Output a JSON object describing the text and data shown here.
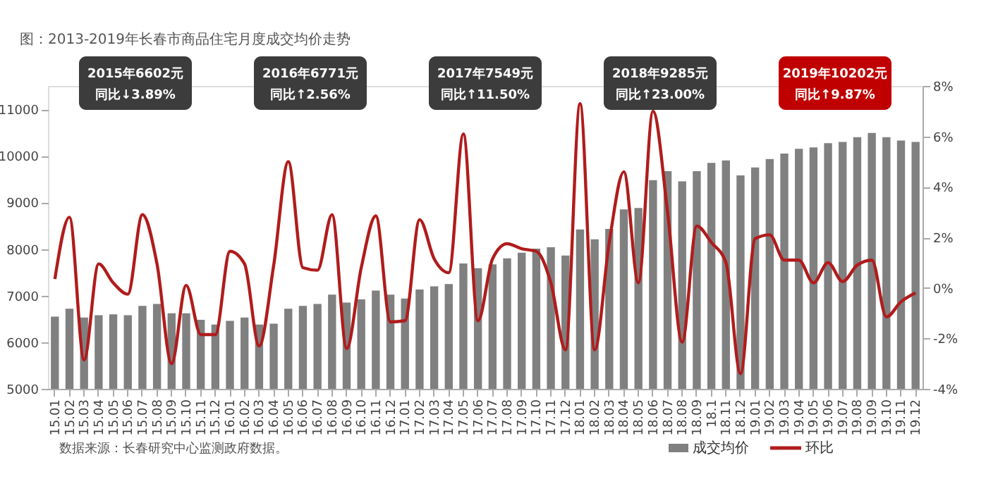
{
  "chart_data": {
    "type": "bar",
    "title": "图：2013-2019年长春市商品住宅月度成交均价走势",
    "categories": [
      "15.01",
      "15.02",
      "15.03",
      "15.04",
      "15.05",
      "15.06",
      "15.07",
      "15.08",
      "15.09",
      "15.10",
      "15.11",
      "15.12",
      "16.01",
      "16.02",
      "16.03",
      "16.04",
      "16.05",
      "16.06",
      "16.07",
      "16.08",
      "16.09",
      "16.10",
      "16.11",
      "16.12",
      "17.01",
      "17.02",
      "17.03",
      "17.04",
      "17.05",
      "17.06",
      "17.07",
      "17.08",
      "17.09",
      "17.10",
      "17.11",
      "17.12",
      "18.01",
      "18.02",
      "18.03",
      "18.04",
      "18.05",
      "18.06",
      "18.07",
      "18.08",
      "18.09",
      "18.1",
      "18.11",
      "18.12",
      "19.01",
      "19.02",
      "19.03",
      "19.04",
      "19.05",
      "19.06",
      "19.07",
      "19.08",
      "19.09",
      "19.10",
      "19.11",
      "19.12"
    ],
    "series": [
      {
        "name": "成交均价",
        "color": "#808080",
        "values": [
          6550,
          6720,
          6530,
          6580,
          6600,
          6580,
          6780,
          6820,
          6620,
          6620,
          6480,
          6380,
          6460,
          6530,
          6380,
          6400,
          6720,
          6780,
          6820,
          7020,
          6850,
          6920,
          7110,
          7020,
          6940,
          7130,
          7200,
          7250,
          7690,
          7590,
          7670,
          7800,
          7920,
          8010,
          8040,
          7860,
          8420,
          8210,
          8430,
          8850,
          8880,
          9480,
          9670,
          9450,
          9670,
          9850,
          9900,
          9580,
          9750,
          9930,
          10050,
          10150,
          10180,
          10270,
          10300,
          10400,
          10490,
          10400,
          10330,
          10300
        ]
      },
      {
        "name": "环比",
        "type": "line",
        "axis": "y2",
        "color": "#b01c1c",
        "values": [
          0.35,
          2.8,
          -2.85,
          0.95,
          0.2,
          -0.25,
          2.9,
          0.95,
          -3.0,
          0.1,
          -1.85,
          -1.85,
          1.45,
          0.95,
          -2.3,
          0.9,
          5.0,
          0.8,
          0.7,
          2.9,
          -2.4,
          0.8,
          2.85,
          -1.35,
          -1.3,
          2.7,
          1.15,
          0.6,
          6.1,
          -1.3,
          1.15,
          1.75,
          1.55,
          1.45,
          0.2,
          -2.45,
          7.3,
          -2.45,
          1.8,
          4.6,
          0.2,
          7.0,
          3.0,
          -2.15,
          2.45,
          1.8,
          1.0,
          -3.4,
          1.95,
          2.1,
          1.1,
          1.1,
          0.2,
          1.0,
          0.25,
          0.9,
          1.1,
          -1.15,
          -0.55,
          -0.2
        ]
      }
    ],
    "ylim": [
      5000,
      11500
    ],
    "yticks": [
      5000,
      6000,
      7000,
      8000,
      9000,
      10000,
      11000
    ],
    "y2lim": [
      -4,
      8
    ],
    "y2ticks": [
      {
        "value": -4,
        "label": "-4%"
      },
      {
        "value": -2,
        "label": "-2%"
      },
      {
        "value": 0,
        "label": "0%"
      },
      {
        "value": 2,
        "label": "2%"
      },
      {
        "value": 4,
        "label": "4%"
      },
      {
        "value": 6,
        "label": "6%"
      },
      {
        "value": 8,
        "label": "8%"
      }
    ],
    "grid": false,
    "legend": "bottom",
    "annotations": [
      "2015年6602元",
      "同比↓3.89%",
      "2016年6771元",
      "同比↑2.56%",
      "2017年7549元",
      "同比↑11.50%",
      "2018年9285元",
      "同比↑23.00%",
      "2019年10202元",
      "同比↑9.87%",
      "数据来源：长春研究中心监测政府数据。"
    ]
  }
}
